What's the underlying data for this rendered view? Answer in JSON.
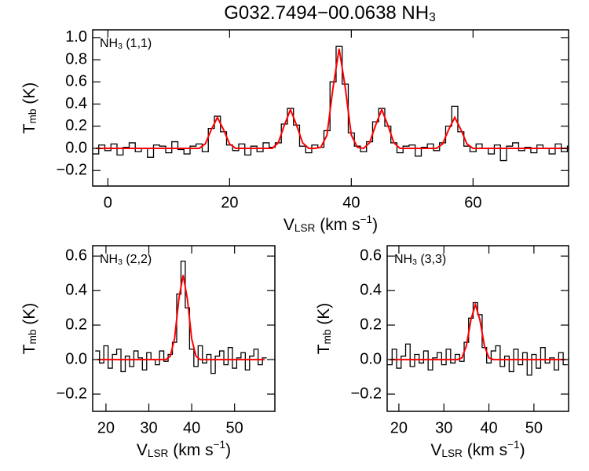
{
  "title": [
    {
      "text": "G032.7494−00.0638 NH"
    },
    {
      "text": "3",
      "script": "sub"
    }
  ],
  "chart_data": [
    {
      "type": "line",
      "label": [
        {
          "text": "NH"
        },
        {
          "text": "3",
          "script": "sub"
        },
        {
          "text": " (1,1)"
        }
      ],
      "xlabel": [
        {
          "text": "V"
        },
        {
          "text": "LSR",
          "script": "sub"
        },
        {
          "text": " (km s"
        },
        {
          "text": "−1",
          "script": "sup"
        },
        {
          "text": ")"
        }
      ],
      "ylabel": [
        {
          "text": "T"
        },
        {
          "text": "mb",
          "script": "sub"
        },
        {
          "text": " (K)"
        }
      ],
      "x": [
        -2,
        -1,
        0,
        1,
        2,
        3,
        4,
        5,
        6,
        7,
        8,
        9,
        10,
        11,
        12,
        13,
        14,
        15,
        16,
        17,
        18,
        19,
        20,
        21,
        22,
        23,
        24,
        25,
        26,
        27,
        28,
        29,
        30,
        31,
        32,
        33,
        34,
        35,
        36,
        37,
        38,
        39,
        40,
        41,
        42,
        43,
        44,
        45,
        46,
        47,
        48,
        49,
        50,
        51,
        52,
        53,
        54,
        55,
        56,
        57,
        58,
        59,
        60,
        61,
        62,
        63,
        64,
        65,
        66,
        67,
        68,
        69,
        70,
        71,
        72,
        73,
        74,
        75,
        76
      ],
      "series": [
        {
          "color": "#000000",
          "step": true,
          "values": [
            -0.05,
            0.03,
            -0.02,
            0.04,
            -0.06,
            0.01,
            0.05,
            -0.03,
            0.0,
            -0.08,
            0.03,
            0.02,
            -0.04,
            0.06,
            -0.01,
            -0.05,
            0.02,
            0.04,
            -0.03,
            0.18,
            0.29,
            0.15,
            0.03,
            -0.02,
            0.04,
            -0.06,
            0.02,
            -0.03,
            0.05,
            0.01,
            0.05,
            0.22,
            0.36,
            0.21,
            0.02,
            -0.04,
            0.03,
            0.01,
            0.16,
            0.6,
            0.92,
            0.58,
            0.14,
            0.02,
            -0.03,
            0.06,
            0.24,
            0.36,
            0.2,
            0.05,
            -0.04,
            0.02,
            0.03,
            -0.07,
            0.01,
            0.04,
            -0.02,
            0.05,
            0.2,
            0.38,
            0.15,
            0.02,
            -0.03,
            0.04,
            0.0,
            -0.05,
            0.03,
            -0.11,
            0.02,
            0.05,
            -0.02,
            0.01,
            -0.04,
            0.03,
            0.0,
            -0.05,
            0.04,
            -0.03,
            0.02
          ]
        },
        {
          "color": "#ff0000",
          "values": [
            0,
            0,
            0,
            0,
            0,
            0,
            0,
            0,
            0,
            0,
            0,
            0,
            0,
            0,
            0,
            0,
            0,
            0,
            0.04,
            0.17,
            0.28,
            0.17,
            0.04,
            0,
            0,
            0,
            0,
            0,
            0,
            0,
            0.05,
            0.21,
            0.35,
            0.21,
            0.05,
            0,
            0,
            0.01,
            0.12,
            0.55,
            0.9,
            0.55,
            0.12,
            0.01,
            0,
            0.05,
            0.21,
            0.35,
            0.21,
            0.05,
            0,
            0,
            0,
            0,
            0,
            0,
            0,
            0.04,
            0.17,
            0.28,
            0.17,
            0.04,
            0,
            0,
            0,
            0,
            0,
            0,
            0,
            0,
            0,
            0,
            0,
            0,
            0,
            0,
            0,
            0,
            0
          ]
        }
      ],
      "xlim": [
        -2.5,
        75.7
      ],
      "ylim": [
        -0.34,
        1.07
      ],
      "xticks": [
        0,
        20,
        40,
        60
      ],
      "yticks": [
        {
          "value": -0.2,
          "label": "−0.2"
        },
        {
          "value": 0,
          "label": "0.0"
        },
        {
          "value": 0.2,
          "label": "0.2"
        },
        {
          "value": 0.4,
          "label": "0.4"
        },
        {
          "value": 0.6,
          "label": "0.6"
        },
        {
          "value": 0.8,
          "label": "0.8"
        },
        {
          "value": 1,
          "label": "1.0"
        }
      ]
    },
    {
      "type": "line",
      "label": [
        {
          "text": "NH"
        },
        {
          "text": "3",
          "script": "sub"
        },
        {
          "text": " (2,2)"
        }
      ],
      "xlabel": [
        {
          "text": "V"
        },
        {
          "text": "LSR",
          "script": "sub"
        },
        {
          "text": " (km s"
        },
        {
          "text": "−1",
          "script": "sup"
        },
        {
          "text": ")"
        }
      ],
      "ylabel": [
        {
          "text": "T"
        },
        {
          "text": "mb",
          "script": "sub"
        },
        {
          "text": " (K)"
        }
      ],
      "x": [
        18,
        19,
        20,
        21,
        22,
        23,
        24,
        25,
        26,
        27,
        28,
        29,
        30,
        31,
        32,
        33,
        34,
        35,
        36,
        37,
        38,
        39,
        40,
        41,
        42,
        43,
        44,
        45,
        46,
        47,
        48,
        49,
        50,
        51,
        52,
        53,
        54,
        55,
        56,
        57
      ],
      "series": [
        {
          "color": "#000000",
          "step": true,
          "values": [
            0.05,
            -0.02,
            0.08,
            -0.05,
            0.03,
            0.06,
            -0.07,
            0.02,
            -0.04,
            0.05,
            0.01,
            -0.06,
            0.04,
            0.0,
            -0.03,
            0.05,
            -0.01,
            0.03,
            0.1,
            0.38,
            0.57,
            0.3,
            0.06,
            -0.04,
            0.08,
            -0.02,
            0.03,
            -0.08,
            0.02,
            0.05,
            -0.03,
            0.07,
            -0.05,
            0.01,
            0.04,
            -0.06,
            0.02,
            0.06,
            -0.03,
            0.01
          ]
        },
        {
          "color": "#ff0000",
          "values": [
            0,
            0,
            0,
            0,
            0,
            0,
            0,
            0,
            0,
            0,
            0,
            0,
            0,
            0,
            0,
            0,
            0,
            0.02,
            0.12,
            0.35,
            0.49,
            0.35,
            0.12,
            0.02,
            0,
            0,
            0,
            0,
            0,
            0,
            0,
            0,
            0,
            0,
            0,
            0,
            0,
            0,
            0,
            0
          ]
        }
      ],
      "xlim": [
        16.9,
        59.4
      ],
      "ylim": [
        -0.3,
        0.66
      ],
      "xticks": [
        20,
        30,
        40,
        50
      ],
      "yticks": [
        {
          "value": -0.2,
          "label": "−0.2"
        },
        {
          "value": 0,
          "label": "0.0"
        },
        {
          "value": 0.2,
          "label": "0.2"
        },
        {
          "value": 0.4,
          "label": "0.4"
        },
        {
          "value": 0.6,
          "label": "0.6"
        }
      ]
    },
    {
      "type": "line",
      "label": [
        {
          "text": "NH"
        },
        {
          "text": "3",
          "script": "sub"
        },
        {
          "text": " (3,3)"
        }
      ],
      "xlabel": [
        {
          "text": "V"
        },
        {
          "text": "LSR",
          "script": "sub"
        },
        {
          "text": " (km s"
        },
        {
          "text": "−1",
          "script": "sup"
        },
        {
          "text": ")"
        }
      ],
      "ylabel": [
        {
          "text": "T"
        },
        {
          "text": "mb",
          "script": "sub"
        },
        {
          "text": " (K)"
        }
      ],
      "x": [
        18,
        19,
        20,
        21,
        22,
        23,
        24,
        25,
        26,
        27,
        28,
        29,
        30,
        31,
        32,
        33,
        34,
        35,
        36,
        37,
        38,
        39,
        40,
        41,
        42,
        43,
        44,
        45,
        46,
        47,
        48,
        49,
        50,
        51,
        52,
        53,
        54,
        55,
        56,
        57
      ],
      "series": [
        {
          "color": "#000000",
          "step": true,
          "values": [
            -0.03,
            0.06,
            -0.05,
            0.02,
            0.09,
            -0.04,
            0.03,
            -0.02,
            0.05,
            -0.06,
            0.01,
            0.04,
            -0.03,
            0.06,
            -0.02,
            0.03,
            -0.01,
            0.1,
            0.24,
            0.33,
            0.26,
            0.07,
            -0.02,
            0.05,
            0.08,
            -0.04,
            0.02,
            -0.07,
            0.06,
            -0.03,
            0.04,
            -0.09,
            0.03,
            -0.05,
            0.07,
            -0.02,
            0.01,
            -0.06,
            0.04,
            -0.03
          ]
        },
        {
          "color": "#ff0000",
          "values": [
            0,
            0,
            0,
            0,
            0,
            0,
            0,
            0,
            0,
            0,
            0,
            0,
            0,
            0,
            0,
            0,
            0.01,
            0.08,
            0.23,
            0.32,
            0.23,
            0.08,
            0.01,
            0,
            0,
            0,
            0,
            0,
            0,
            0,
            0,
            0,
            0,
            0,
            0,
            0,
            0,
            0,
            0,
            0
          ]
        }
      ],
      "xlim": [
        17.4,
        57.7
      ],
      "ylim": [
        -0.3,
        0.66
      ],
      "xticks": [
        20,
        30,
        40,
        50
      ],
      "yticks": [
        {
          "value": -0.2,
          "label": "−0.2"
        },
        {
          "value": 0,
          "label": "0.0"
        },
        {
          "value": 0.2,
          "label": "0.2"
        },
        {
          "value": 0.4,
          "label": "0.4"
        },
        {
          "value": 0.6,
          "label": "0.6"
        }
      ]
    }
  ]
}
